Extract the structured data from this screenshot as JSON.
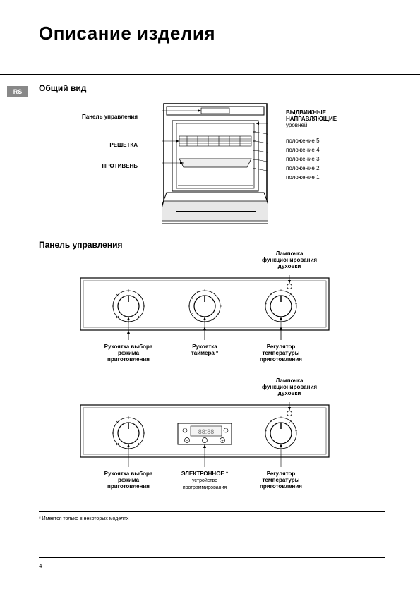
{
  "page": {
    "title": "Описание изделия",
    "side_tab": "RS",
    "section1": "Общий вид",
    "section2": "Панель управления",
    "footnote": "* Имеется только в некоторых моделях",
    "number": "4"
  },
  "oven": {
    "left_labels": {
      "control_panel": "Панель управления",
      "grille": "РЕШЕТКА",
      "tray": "ПРОТИВЕНЬ"
    },
    "right_labels": {
      "guides_b1": "ВЫДВИЖНЫЕ",
      "guides_b2": "НАПРАВЛЯЮЩИЕ",
      "guides_sub": "уровней",
      "p5": "положение 5",
      "p4": "положение 4",
      "p3": "положение 3",
      "p2": "положение 2",
      "p1": "положение 1"
    },
    "colors": {
      "line": "#000000",
      "fill": "#ffffff",
      "hatch": "#666666"
    }
  },
  "panel1": {
    "lamp_label": "Лампочка\nфункционирования\nдуховки",
    "knob1": "Рукоятка выбора\nрежима\nприготовления",
    "knob2": "Рукоятка\nтаймера *",
    "knob3": "Регулятор\nтемпературы\nприготовления",
    "display_text": "",
    "colors": {
      "stroke": "#000000",
      "face": "#ffffff"
    }
  },
  "panel2": {
    "lamp_label": "Лампочка\nфункционирования\nдуховки",
    "knob1": "Рукоятка выбора\nрежима\nприготовления",
    "center_b": "ЭЛЕКТРОННОЕ *",
    "center_sub": "устройство\nпрограммирования",
    "knob3": "Регулятор\nтемпературы\nприготовления",
    "display_text": "88:88",
    "colors": {
      "stroke": "#000000",
      "face": "#ffffff",
      "display": "#777"
    }
  }
}
